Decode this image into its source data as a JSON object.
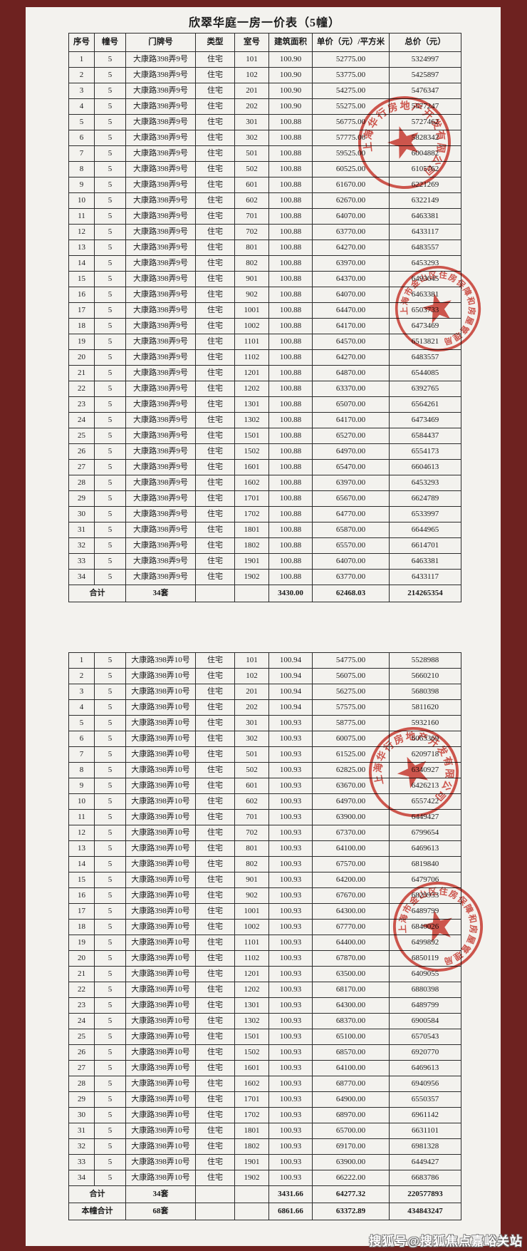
{
  "document": {
    "title": "欣翠华庭一房一价表（5幢）",
    "columns": [
      "序号",
      "幢号",
      "门牌号",
      "类型",
      "室号",
      "建筑面积",
      "单价（元）/平方米",
      "总价（元）"
    ],
    "building1": {
      "rows": [
        [
          "1",
          "5",
          "大康路398弄9号",
          "住宅",
          "101",
          "100.90",
          "52775.00",
          "5324997"
        ],
        [
          "2",
          "5",
          "大康路398弄9号",
          "住宅",
          "102",
          "100.90",
          "53775.00",
          "5425897"
        ],
        [
          "3",
          "5",
          "大康路398弄9号",
          "住宅",
          "201",
          "100.90",
          "54275.00",
          "5476347"
        ],
        [
          "4",
          "5",
          "大康路398弄9号",
          "住宅",
          "202",
          "100.90",
          "55275.00",
          "5577247"
        ],
        [
          "5",
          "5",
          "大康路398弄9号",
          "住宅",
          "301",
          "100.88",
          "56775.00",
          "5727462"
        ],
        [
          "6",
          "5",
          "大康路398弄9号",
          "住宅",
          "302",
          "100.88",
          "57775.00",
          "5828342"
        ],
        [
          "7",
          "5",
          "大康路398弄9号",
          "住宅",
          "501",
          "100.88",
          "59525.00",
          "6004882"
        ],
        [
          "8",
          "5",
          "大康路398弄9号",
          "住宅",
          "502",
          "100.88",
          "60525.00",
          "6105762"
        ],
        [
          "9",
          "5",
          "大康路398弄9号",
          "住宅",
          "601",
          "100.88",
          "61670.00",
          "6221269"
        ],
        [
          "10",
          "5",
          "大康路398弄9号",
          "住宅",
          "602",
          "100.88",
          "62670.00",
          "6322149"
        ],
        [
          "11",
          "5",
          "大康路398弄9号",
          "住宅",
          "701",
          "100.88",
          "64070.00",
          "6463381"
        ],
        [
          "12",
          "5",
          "大康路398弄9号",
          "住宅",
          "702",
          "100.88",
          "63770.00",
          "6433117"
        ],
        [
          "13",
          "5",
          "大康路398弄9号",
          "住宅",
          "801",
          "100.88",
          "64270.00",
          "6483557"
        ],
        [
          "14",
          "5",
          "大康路398弄9号",
          "住宅",
          "802",
          "100.88",
          "63970.00",
          "6453293"
        ],
        [
          "15",
          "5",
          "大康路398弄9号",
          "住宅",
          "901",
          "100.88",
          "64370.00",
          "6493645"
        ],
        [
          "16",
          "5",
          "大康路398弄9号",
          "住宅",
          "902",
          "100.88",
          "64070.00",
          "6463381"
        ],
        [
          "17",
          "5",
          "大康路398弄9号",
          "住宅",
          "1001",
          "100.88",
          "64470.00",
          "6503733"
        ],
        [
          "18",
          "5",
          "大康路398弄9号",
          "住宅",
          "1002",
          "100.88",
          "64170.00",
          "6473469"
        ],
        [
          "19",
          "5",
          "大康路398弄9号",
          "住宅",
          "1101",
          "100.88",
          "64570.00",
          "6513821"
        ],
        [
          "20",
          "5",
          "大康路398弄9号",
          "住宅",
          "1102",
          "100.88",
          "64270.00",
          "6483557"
        ],
        [
          "21",
          "5",
          "大康路398弄9号",
          "住宅",
          "1201",
          "100.88",
          "64870.00",
          "6544085"
        ],
        [
          "22",
          "5",
          "大康路398弄9号",
          "住宅",
          "1202",
          "100.88",
          "63370.00",
          "6392765"
        ],
        [
          "23",
          "5",
          "大康路398弄9号",
          "住宅",
          "1301",
          "100.88",
          "65070.00",
          "6564261"
        ],
        [
          "24",
          "5",
          "大康路398弄9号",
          "住宅",
          "1302",
          "100.88",
          "64170.00",
          "6473469"
        ],
        [
          "25",
          "5",
          "大康路398弄9号",
          "住宅",
          "1501",
          "100.88",
          "65270.00",
          "6584437"
        ],
        [
          "26",
          "5",
          "大康路398弄9号",
          "住宅",
          "1502",
          "100.88",
          "64970.00",
          "6554173"
        ],
        [
          "27",
          "5",
          "大康路398弄9号",
          "住宅",
          "1601",
          "100.88",
          "65470.00",
          "6604613"
        ],
        [
          "28",
          "5",
          "大康路398弄9号",
          "住宅",
          "1602",
          "100.88",
          "63970.00",
          "6453293"
        ],
        [
          "29",
          "5",
          "大康路398弄9号",
          "住宅",
          "1701",
          "100.88",
          "65670.00",
          "6624789"
        ],
        [
          "30",
          "5",
          "大康路398弄9号",
          "住宅",
          "1702",
          "100.88",
          "64770.00",
          "6533997"
        ],
        [
          "31",
          "5",
          "大康路398弄9号",
          "住宅",
          "1801",
          "100.88",
          "65870.00",
          "6644965"
        ],
        [
          "32",
          "5",
          "大康路398弄9号",
          "住宅",
          "1802",
          "100.88",
          "65570.00",
          "6614701"
        ],
        [
          "33",
          "5",
          "大康路398弄9号",
          "住宅",
          "1901",
          "100.88",
          "64070.00",
          "6463381"
        ],
        [
          "34",
          "5",
          "大康路398弄9号",
          "住宅",
          "1902",
          "100.88",
          "63770.00",
          "6433117"
        ]
      ],
      "total": {
        "label": "合计",
        "count": "34套",
        "type": "",
        "room": "",
        "area": "3430.00",
        "unit_price": "62468.03",
        "total_price": "214265354"
      }
    },
    "building2": {
      "rows": [
        [
          "1",
          "5",
          "大康路398弄10号",
          "住宅",
          "101",
          "100.94",
          "54775.00",
          "5528988"
        ],
        [
          "2",
          "5",
          "大康路398弄10号",
          "住宅",
          "102",
          "100.94",
          "56075.00",
          "5660210"
        ],
        [
          "3",
          "5",
          "大康路398弄10号",
          "住宅",
          "201",
          "100.94",
          "56275.00",
          "5680398"
        ],
        [
          "4",
          "5",
          "大康路398弄10号",
          "住宅",
          "202",
          "100.94",
          "57575.00",
          "5811620"
        ],
        [
          "5",
          "5",
          "大康路398弄10号",
          "住宅",
          "301",
          "100.93",
          "58775.00",
          "5932160"
        ],
        [
          "6",
          "5",
          "大康路398弄10号",
          "住宅",
          "302",
          "100.93",
          "60075.00",
          "6063369"
        ],
        [
          "7",
          "5",
          "大康路398弄10号",
          "住宅",
          "501",
          "100.93",
          "61525.00",
          "6209718"
        ],
        [
          "8",
          "5",
          "大康路398弄10号",
          "住宅",
          "502",
          "100.93",
          "62825.00",
          "6340927"
        ],
        [
          "9",
          "5",
          "大康路398弄10号",
          "住宅",
          "601",
          "100.93",
          "63670.00",
          "6426213"
        ],
        [
          "10",
          "5",
          "大康路398弄10号",
          "住宅",
          "602",
          "100.93",
          "64970.00",
          "6557422"
        ],
        [
          "11",
          "5",
          "大康路398弄10号",
          "住宅",
          "701",
          "100.93",
          "63900.00",
          "6449427"
        ],
        [
          "12",
          "5",
          "大康路398弄10号",
          "住宅",
          "702",
          "100.93",
          "67370.00",
          "6799654"
        ],
        [
          "13",
          "5",
          "大康路398弄10号",
          "住宅",
          "801",
          "100.93",
          "64100.00",
          "6469613"
        ],
        [
          "14",
          "5",
          "大康路398弄10号",
          "住宅",
          "802",
          "100.93",
          "67570.00",
          "6819840"
        ],
        [
          "15",
          "5",
          "大康路398弄10号",
          "住宅",
          "901",
          "100.93",
          "64200.00",
          "6479706"
        ],
        [
          "16",
          "5",
          "大康路398弄10号",
          "住宅",
          "902",
          "100.93",
          "67670.00",
          "6829933"
        ],
        [
          "17",
          "5",
          "大康路398弄10号",
          "住宅",
          "1001",
          "100.93",
          "64300.00",
          "6489799"
        ],
        [
          "18",
          "5",
          "大康路398弄10号",
          "住宅",
          "1002",
          "100.93",
          "67770.00",
          "6840026"
        ],
        [
          "19",
          "5",
          "大康路398弄10号",
          "住宅",
          "1101",
          "100.93",
          "64400.00",
          "6499892"
        ],
        [
          "20",
          "5",
          "大康路398弄10号",
          "住宅",
          "1102",
          "100.93",
          "67870.00",
          "6850119"
        ],
        [
          "21",
          "5",
          "大康路398弄10号",
          "住宅",
          "1201",
          "100.93",
          "63500.00",
          "6409055"
        ],
        [
          "22",
          "5",
          "大康路398弄10号",
          "住宅",
          "1202",
          "100.93",
          "68170.00",
          "6880398"
        ],
        [
          "23",
          "5",
          "大康路398弄10号",
          "住宅",
          "1301",
          "100.93",
          "64300.00",
          "6489799"
        ],
        [
          "24",
          "5",
          "大康路398弄10号",
          "住宅",
          "1302",
          "100.93",
          "68370.00",
          "6900584"
        ],
        [
          "25",
          "5",
          "大康路398弄10号",
          "住宅",
          "1501",
          "100.93",
          "65100.00",
          "6570543"
        ],
        [
          "26",
          "5",
          "大康路398弄10号",
          "住宅",
          "1502",
          "100.93",
          "68570.00",
          "6920770"
        ],
        [
          "27",
          "5",
          "大康路398弄10号",
          "住宅",
          "1601",
          "100.93",
          "64100.00",
          "6469613"
        ],
        [
          "28",
          "5",
          "大康路398弄10号",
          "住宅",
          "1602",
          "100.93",
          "68770.00",
          "6940956"
        ],
        [
          "29",
          "5",
          "大康路398弄10号",
          "住宅",
          "1701",
          "100.93",
          "64900.00",
          "6550357"
        ],
        [
          "30",
          "5",
          "大康路398弄10号",
          "住宅",
          "1702",
          "100.93",
          "68970.00",
          "6961142"
        ],
        [
          "31",
          "5",
          "大康路398弄10号",
          "住宅",
          "1801",
          "100.93",
          "65700.00",
          "6631101"
        ],
        [
          "32",
          "5",
          "大康路398弄10号",
          "住宅",
          "1802",
          "100.93",
          "69170.00",
          "6981328"
        ],
        [
          "33",
          "5",
          "大康路398弄10号",
          "住宅",
          "1901",
          "100.93",
          "63900.00",
          "6449427"
        ],
        [
          "34",
          "5",
          "大康路398弄10号",
          "住宅",
          "1902",
          "100.93",
          "66222.00",
          "6683786"
        ]
      ],
      "total": {
        "label": "合计",
        "count": "34套",
        "type": "",
        "room": "",
        "area": "3431.66",
        "unit_price": "64277.32",
        "total_price": "220577893"
      },
      "building_total": {
        "label": "本幢合计",
        "count": "68套",
        "type": "",
        "room": "",
        "area": "6861.66",
        "unit_price": "63372.89",
        "total_price": "434843247"
      }
    }
  },
  "stamps": {
    "company_seal_text": "上海华行房地产开发有限公司",
    "authority_seal_text": "上海市金山区住房保障和房屋管理局"
  },
  "watermark": {
    "text": "搜狐号@搜狐焦点嘉峪关站"
  },
  "colors": {
    "frame": "#6e2220",
    "paper": "#f3f2ee",
    "stamp_red": "#cf3b32",
    "table_line": "#2b2b2b"
  }
}
